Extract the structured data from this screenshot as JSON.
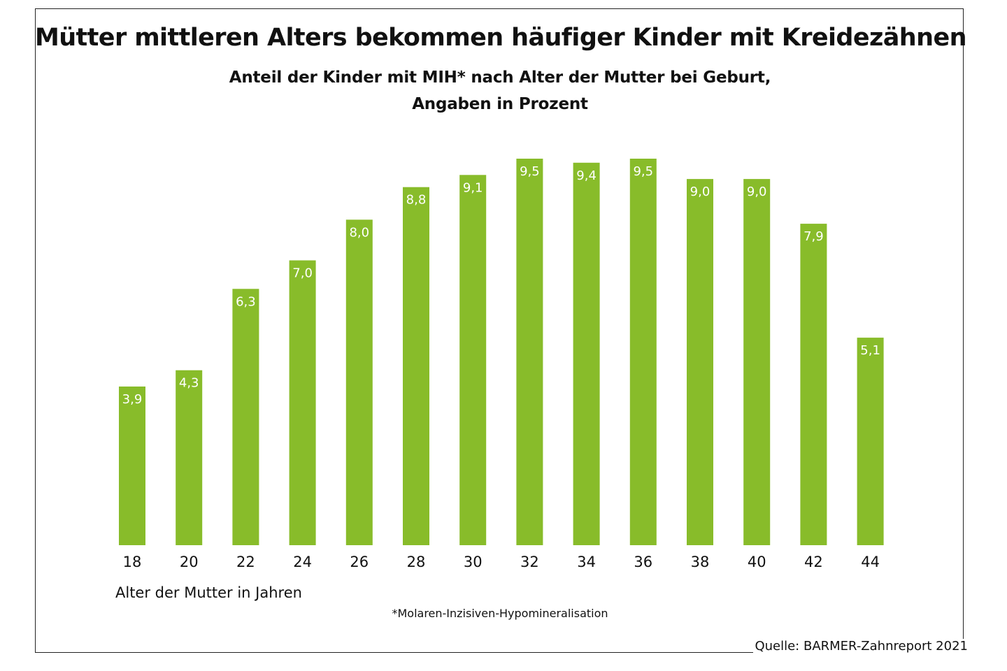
{
  "chart_data": {
    "type": "bar",
    "title": "Mütter mittleren Alters bekommen häufiger Kinder mit Kreidezähnen",
    "subtitle_lines": [
      "Anteil der Kinder mit MIH* nach Alter der Mutter bei Geburt,",
      "Angaben in Prozent"
    ],
    "xlabel": "Alter der Mutter in Jahren",
    "ylabel": "",
    "categories": [
      "18",
      "20",
      "22",
      "24",
      "26",
      "28",
      "30",
      "32",
      "34",
      "36",
      "38",
      "40",
      "42",
      "44"
    ],
    "values": [
      3.9,
      4.3,
      6.3,
      7.0,
      8.0,
      8.8,
      9.1,
      9.5,
      9.4,
      9.5,
      9.0,
      9.0,
      7.9,
      5.1
    ],
    "value_labels": [
      "3,9",
      "4,3",
      "6,3",
      "7,0",
      "8,0",
      "8,8",
      "9,1",
      "9,5",
      "9,4",
      "9,5",
      "9,0",
      "9,0",
      "7,9",
      "5,1"
    ],
    "ylim": [
      0,
      9.5
    ],
    "grid": false,
    "legend": "none",
    "footnote": "*Molaren-Inzisiven-Hypomineralisation",
    "source": "Quelle: BARMER-Zahnreport 2021",
    "bar_color": "#88bc2a",
    "value_label_color": "#ffffff"
  }
}
